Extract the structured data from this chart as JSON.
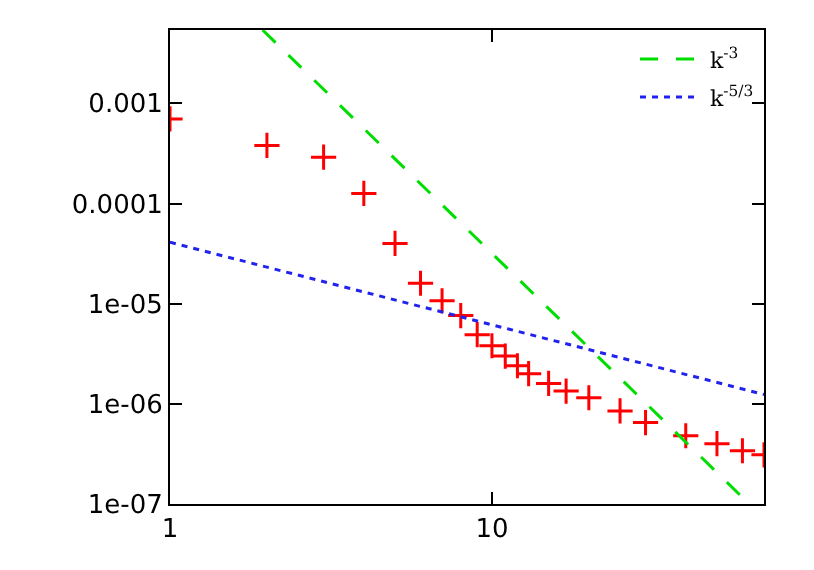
{
  "chart_data": {
    "type": "scatter",
    "log": "xy",
    "xlim": [
      1,
      70
    ],
    "ylim": [
      1e-07,
      0.0054
    ],
    "xticks": [
      1,
      10
    ],
    "yticks": [
      1e-07,
      {
        "value": 1e-06,
        "label": "1e-06"
      },
      {
        "value": 1e-05,
        "label": "1e-05"
      },
      0.0001,
      0.001
    ],
    "legend": "top right",
    "series": [
      {
        "color": "#ff0000",
        "marker": "cross",
        "x": [
          1,
          2,
          3,
          4,
          5,
          6,
          7,
          8,
          9,
          10,
          11,
          12,
          13,
          15,
          17,
          20,
          25,
          30,
          40,
          50,
          60,
          70
        ],
        "values": [
          0.0007,
          0.00038,
          0.00029,
          0.000126,
          4e-05,
          1.6e-05,
          1.07e-05,
          7.6e-06,
          4.9e-06,
          3.8e-06,
          3e-06,
          2.4e-06,
          2e-06,
          1.6e-06,
          1.34e-06,
          1.15e-06,
          8.5e-07,
          6.5e-07,
          4.8e-07,
          4e-07,
          3.4e-07,
          3.1e-07
        ]
      },
      {
        "type": "line",
        "name": "k$^{-3}$",
        "color": "#00dd00",
        "line_style": "dashed",
        "marker": "none",
        "x": [
          1.94,
          63
        ],
        "values": [
          0.0054,
          1e-07
        ]
      },
      {
        "type": "line",
        "name": "k$^{-5/3}$",
        "color": "#2222ee",
        "line_style": "dotted",
        "marker": "none",
        "x": [
          1,
          70
        ],
        "values": [
          4.1e-05,
          1.24e-06
        ]
      }
    ]
  }
}
